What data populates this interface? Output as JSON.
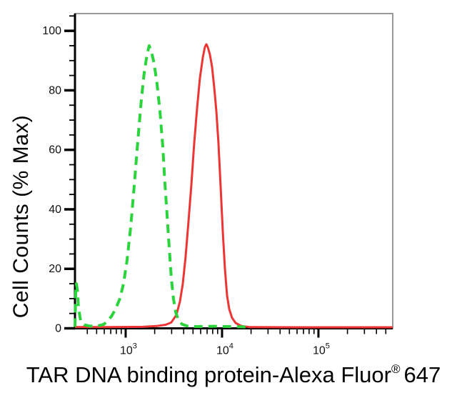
{
  "chart_data": {
    "type": "line",
    "subtype": "flow-cytometry-histogram-overlay",
    "title": "",
    "ylabel": "Cell Counts (% Max)",
    "xlabel_main": "TAR DNA binding protein-Alexa Fluor",
    "xlabel_sup": "®",
    "xlabel_suffix": "647",
    "x_scale": "log",
    "xlim": [
      298,
      590000
    ],
    "ylim": [
      0,
      105.8
    ],
    "grid": false,
    "legend_position": "none",
    "background": "#ffffff",
    "frame_colors": {
      "axis": "#000000",
      "top_right_border": "#9a9a9a"
    },
    "x_major_ticks": [
      {
        "value": 1000,
        "base": "10",
        "exp": "3"
      },
      {
        "value": 10000,
        "base": "10",
        "exp": "4"
      },
      {
        "value": 100000,
        "base": "10",
        "exp": "5"
      }
    ],
    "x_minor_ticks": [
      400,
      500,
      600,
      700,
      800,
      900,
      2000,
      3000,
      4000,
      5000,
      6000,
      7000,
      8000,
      9000,
      20000,
      30000,
      40000,
      50000,
      60000,
      70000,
      80000,
      90000,
      200000,
      300000,
      400000,
      500000
    ],
    "y_major_ticks": [
      {
        "value": 0,
        "label": "0"
      },
      {
        "value": 20,
        "label": "20"
      },
      {
        "value": 40,
        "label": "40"
      },
      {
        "value": 60,
        "label": "60"
      },
      {
        "value": 80,
        "label": "80"
      },
      {
        "value": 100,
        "label": "100"
      }
    ],
    "y_minor_ticks": [
      5,
      10,
      15,
      25,
      30,
      35,
      45,
      50,
      55,
      65,
      70,
      75,
      85,
      90,
      95,
      105
    ],
    "series": [
      {
        "name": "green-dashed-control",
        "color": "#2bd43c",
        "style": "dashed",
        "stroke_width": 4,
        "peak": {
          "x": 1750,
          "y": 95
        },
        "points": [
          [
            298,
            0.5
          ],
          [
            303,
            12
          ],
          [
            308,
            15
          ],
          [
            315,
            13
          ],
          [
            324,
            7
          ],
          [
            341,
            2.5
          ],
          [
            372,
            1.2
          ],
          [
            419,
            0.8
          ],
          [
            497,
            0.7
          ],
          [
            589,
            1.3
          ],
          [
            641,
            2.2
          ],
          [
            711,
            4
          ],
          [
            787,
            6.5
          ],
          [
            872,
            10
          ],
          [
            951,
            15
          ],
          [
            1035,
            23
          ],
          [
            1127,
            34
          ],
          [
            1227,
            48
          ],
          [
            1336,
            63
          ],
          [
            1455,
            77
          ],
          [
            1559,
            86
          ],
          [
            1667,
            92
          ],
          [
            1754,
            95
          ],
          [
            1849,
            93
          ],
          [
            1977,
            89
          ],
          [
            2118,
            82
          ],
          [
            2269,
            73
          ],
          [
            2427,
            61
          ],
          [
            2551,
            49
          ],
          [
            2692,
            38
          ],
          [
            2831,
            27
          ],
          [
            2978,
            17
          ],
          [
            3133,
            10
          ],
          [
            3304,
            5.5
          ],
          [
            3532,
            2.8
          ],
          [
            3846,
            1.4
          ],
          [
            4335,
            0.8
          ],
          [
            5408,
            0.6
          ],
          [
            8299,
            0.7
          ],
          [
            11668,
            0.6
          ],
          [
            16406,
            0.5
          ],
          [
            17865,
            0.4
          ]
        ]
      },
      {
        "name": "red-solid-tar-dna-binding-protein",
        "color": "#ee3535",
        "style": "solid",
        "stroke_width": 3,
        "peak": {
          "x": 6870,
          "y": 95.5
        },
        "points": [
          [
            298,
            0.4
          ],
          [
            641,
            0.4
          ],
          [
            1500,
            0.5
          ],
          [
            2118,
            0.8
          ],
          [
            2600,
            1.2
          ],
          [
            2978,
            2
          ],
          [
            3357,
            4.5
          ],
          [
            3656,
            9
          ],
          [
            3917,
            15
          ],
          [
            4188,
            24
          ],
          [
            4488,
            36
          ],
          [
            4797,
            48
          ],
          [
            5140,
            62
          ],
          [
            5508,
            74
          ],
          [
            5888,
            84
          ],
          [
            6310,
            91
          ],
          [
            6637,
            94.5
          ],
          [
            6871,
            95.5
          ],
          [
            7112,
            94.5
          ],
          [
            7482,
            92
          ],
          [
            7870,
            88
          ],
          [
            8299,
            81
          ],
          [
            8730,
            73
          ],
          [
            9183,
            62
          ],
          [
            9661,
            48
          ],
          [
            10165,
            33
          ],
          [
            10715,
            20
          ],
          [
            11272,
            11
          ],
          [
            11858,
            6.5
          ],
          [
            12706,
            3.5
          ],
          [
            13836,
            1.8
          ],
          [
            15849,
            0.8
          ],
          [
            19454,
            0.4
          ],
          [
            60000,
            0.35
          ],
          [
            588000,
            0.35
          ]
        ]
      }
    ]
  }
}
